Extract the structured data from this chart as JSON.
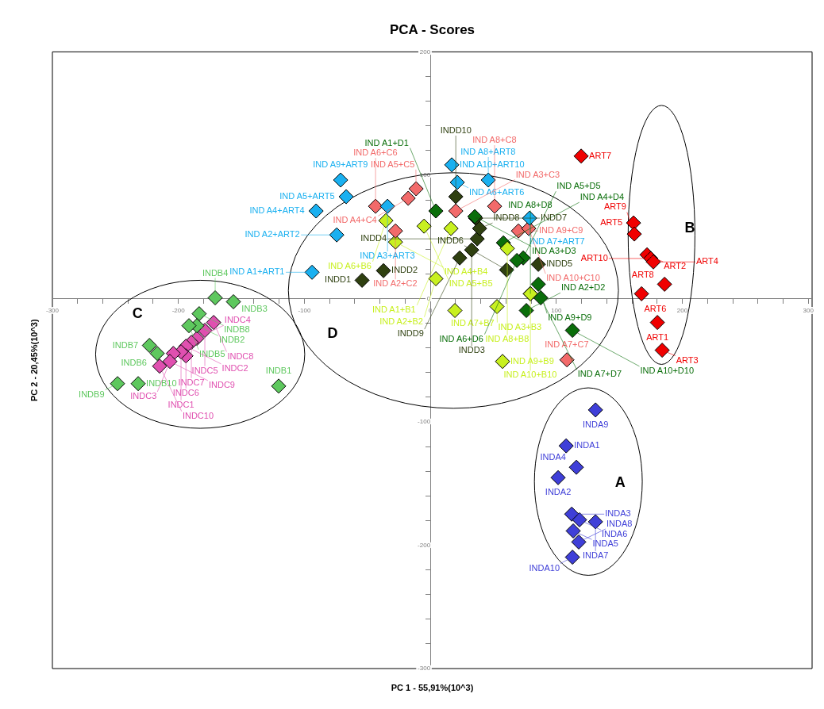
{
  "chart_data": {
    "type": "scatter",
    "title": "PCA - Scores",
    "xlabel": "PC 1 - 55,91%(10^3)",
    "ylabel": "PC 2 - 20,45%(10^3)",
    "xlim": [
      -300,
      303
    ],
    "ylim": [
      -300,
      200
    ],
    "xticks": [
      -300,
      {
        "value": -280,
        "label": null
      },
      {
        "value": -260,
        "label": null
      },
      {
        "value": -240,
        "label": null
      },
      {
        "value": -220,
        "label": null
      },
      -200,
      {
        "value": -180,
        "label": null
      },
      {
        "value": -160,
        "label": null
      },
      {
        "value": -140,
        "label": null
      },
      {
        "value": -120,
        "label": null
      },
      -100,
      {
        "value": -80,
        "label": null
      },
      {
        "value": -60,
        "label": null
      },
      {
        "value": -40,
        "label": null
      },
      {
        "value": -20,
        "label": null
      },
      0,
      {
        "value": 20,
        "label": null
      },
      {
        "value": 40,
        "label": null
      },
      {
        "value": 60,
        "label": null
      },
      {
        "value": 80,
        "label": null
      },
      100,
      {
        "value": 120,
        "label": null
      },
      {
        "value": 140,
        "label": null
      },
      {
        "value": 160,
        "label": null
      },
      {
        "value": 180,
        "label": null
      },
      200,
      {
        "value": 220,
        "label": null
      },
      {
        "value": 240,
        "label": null
      },
      {
        "value": 260,
        "label": null
      },
      {
        "value": 280,
        "label": null
      },
      300
    ],
    "yticks": [
      -300,
      {
        "value": -280,
        "label": null
      },
      {
        "value": -260,
        "label": null
      },
      {
        "value": -240,
        "label": null
      },
      {
        "value": -220,
        "label": null
      },
      -200,
      {
        "value": -180,
        "label": null
      },
      {
        "value": -160,
        "label": null
      },
      {
        "value": -140,
        "label": null
      },
      {
        "value": -120,
        "label": null
      },
      -100,
      {
        "value": -80,
        "label": null
      },
      {
        "value": -60,
        "label": null
      },
      {
        "value": -40,
        "label": null
      },
      {
        "value": -20,
        "label": null
      },
      0,
      {
        "value": 20,
        "label": null
      },
      {
        "value": 40,
        "label": null
      },
      {
        "value": 60,
        "label": null
      },
      {
        "value": 80,
        "label": null
      },
      100,
      {
        "value": 120,
        "label": null
      },
      {
        "value": 140,
        "label": null
      },
      {
        "value": 160,
        "label": null
      },
      {
        "value": 180,
        "label": null
      },
      200
    ],
    "marker": "diamond",
    "legend": false,
    "series": [
      {
        "color": "#3f3fd8",
        "x": [
          131.1,
          107.8,
          115.9,
          101.4,
          112.2,
          118.4,
          131.1,
          113.4,
          117.8,
          112.8
        ],
        "values": [
          -90.3,
          -119.4,
          -136.8,
          -145.2,
          -174.8,
          -179.4,
          -181,
          -188.4,
          -197.4,
          -209.7
        ],
        "value_labels": [
          "INDA9",
          "INDA1",
          "INDA4",
          "INDA2",
          "INDA3",
          "INDA6",
          "INDA7",
          "INDA5",
          "INDA8",
          "INDA10"
        ]
      },
      {
        "color": "#f00000",
        "x": [
          119.7,
          161.3,
          161.9,
          172,
          175,
          177,
          185.9,
          167.6,
          180.2,
          184
        ],
        "values": [
          115.5,
          61.3,
          52.3,
          35.5,
          32.5,
          29.7,
          11.6,
          3.9,
          -19.4,
          -41.9
        ],
        "value_labels": [
          "ART7",
          "ART5",
          "ART9",
          "ART2",
          "ART10",
          "ART4",
          "ART8",
          "ART6",
          "ART1",
          "ART3"
        ]
      },
      {
        "color": "#5ec85e",
        "x": [
          -170.8,
          -156.3,
          -183.5,
          -185.3,
          -191.6,
          -223,
          -216.8,
          -248.3,
          -231.9,
          -120.4
        ],
        "values": [
          0.6,
          -2.6,
          -12.3,
          -22,
          -22,
          -38,
          -44.5,
          -69,
          -69,
          -71
        ],
        "value_labels": [
          "INDB4",
          "INDB3",
          "INDB8",
          "INDB2",
          "INDB5",
          "INDB7",
          "INDB6",
          "INDB9",
          "INDB10",
          "INDB1"
        ]
      },
      {
        "color": "#e050b0",
        "x": [
          -172,
          -179,
          -185.3,
          -189.7,
          -194,
          -194,
          -197.9,
          -204,
          -206.7,
          -214.9
        ],
        "values": [
          -19.4,
          -25.8,
          -32.3,
          -35.5,
          -38.7,
          -46.5,
          -43.2,
          -44.5,
          -51,
          -54.8
        ],
        "value_labels": [
          "INDC8",
          "INDC5",
          "INDC4",
          "INDC7",
          "INDC2",
          "INDC6",
          "INDC1",
          "INDC3",
          "INDC9",
          "INDC10"
        ]
      },
      {
        "color": "#1ab0f0",
        "x": [
          17,
          -71.2,
          46,
          21.4,
          -66.8,
          -90.7,
          -34,
          -74.3,
          78.8,
          -93.9
        ],
        "values": [
          108.4,
          96.1,
          96.1,
          94.2,
          82.6,
          71,
          74.8,
          51.6,
          65.2,
          21.3
        ],
        "value_labels": [
          "IND A10+ART10",
          "IND A9+ART9",
          "IND A8+ART8",
          "IND A6+ART6",
          "IND A5+ART5",
          "IND A4+ART4",
          "IND A3+ART3",
          "IND A2+ART2",
          "IND A7+ART7",
          "IND A1+ART1"
        ]
      },
      {
        "color": "#f26a6a",
        "x": [
          -43.5,
          -11.3,
          -17.6,
          20.2,
          -27.7,
          51,
          69.9,
          78.1,
          108.4
        ],
        "values": [
          74.8,
          89,
          81.3,
          71,
          54.8,
          74.8,
          54.8,
          56.8,
          -49.7
        ],
        "value_labels": [
          "IND A6+C6",
          "IND A5+C5",
          "IND A4+C4",
          "IND A3+C3",
          "IND A2+C2",
          "IND A8+C8",
          "IND A9+C9",
          "IND A10+C10",
          "IND A7+C7"
        ]
      },
      {
        "color": "#c8f020",
        "x": [
          -35.3,
          -27.7,
          -5,
          4.4,
          19.5,
          52.9,
          61.1,
          57.3,
          79.4,
          16.4
        ],
        "values": [
          63.2,
          45.8,
          58.7,
          16.1,
          -9.7,
          -6.5,
          40.6,
          -51,
          3.9,
          56.8
        ],
        "value_labels": [
          "IND A6+B6",
          "IND A4+B4",
          "IND A5+B5",
          "IND A2+B2",
          "IND A7+B7",
          "IND A3+B3",
          "IND A8+B8",
          "IND A9+B9",
          "IND A10+B10",
          "IND A1+B1"
        ]
      },
      {
        "color": "#0a6e0a",
        "x": [
          4.4,
          35.3,
          58,
          73.7,
          68.7,
          85.7,
          79.4,
          87.6,
          76.2,
          112.8
        ],
        "values": [
          71,
          66.5,
          45.2,
          32.9,
          30.9,
          11.6,
          3.9,
          0.6,
          -9.7,
          -25.8
        ],
        "value_labels": [
          "IND A1+D1",
          "IND A3+D3",
          "IND A4+D4",
          "IND A5+D5",
          "IND A6+D6",
          "IND A9+D9",
          "IND A8+D8",
          "IND A7+D7",
          "IND A2+D2",
          "IND A10+D10"
        ]
      },
      {
        "color": "#2f4010",
        "x": [
          -54.2,
          -37.2,
          32.8,
          37.2,
          85.7,
          60.5,
          35.9,
          39.1,
          23.3,
          20.2
        ],
        "values": [
          14.8,
          22.6,
          39.4,
          48.4,
          27.7,
          23.2,
          65.2,
          56.8,
          32.9,
          82.6
        ],
        "value_labels": [
          "INDD1",
          "INDD2",
          "INDD3",
          "INDD4",
          "INDD5",
          "INDD6",
          "INDD7",
          "INDD8",
          "INDD9",
          "INDD10"
        ]
      }
    ],
    "annotations": [
      "A",
      "B",
      "C",
      "D"
    ]
  }
}
